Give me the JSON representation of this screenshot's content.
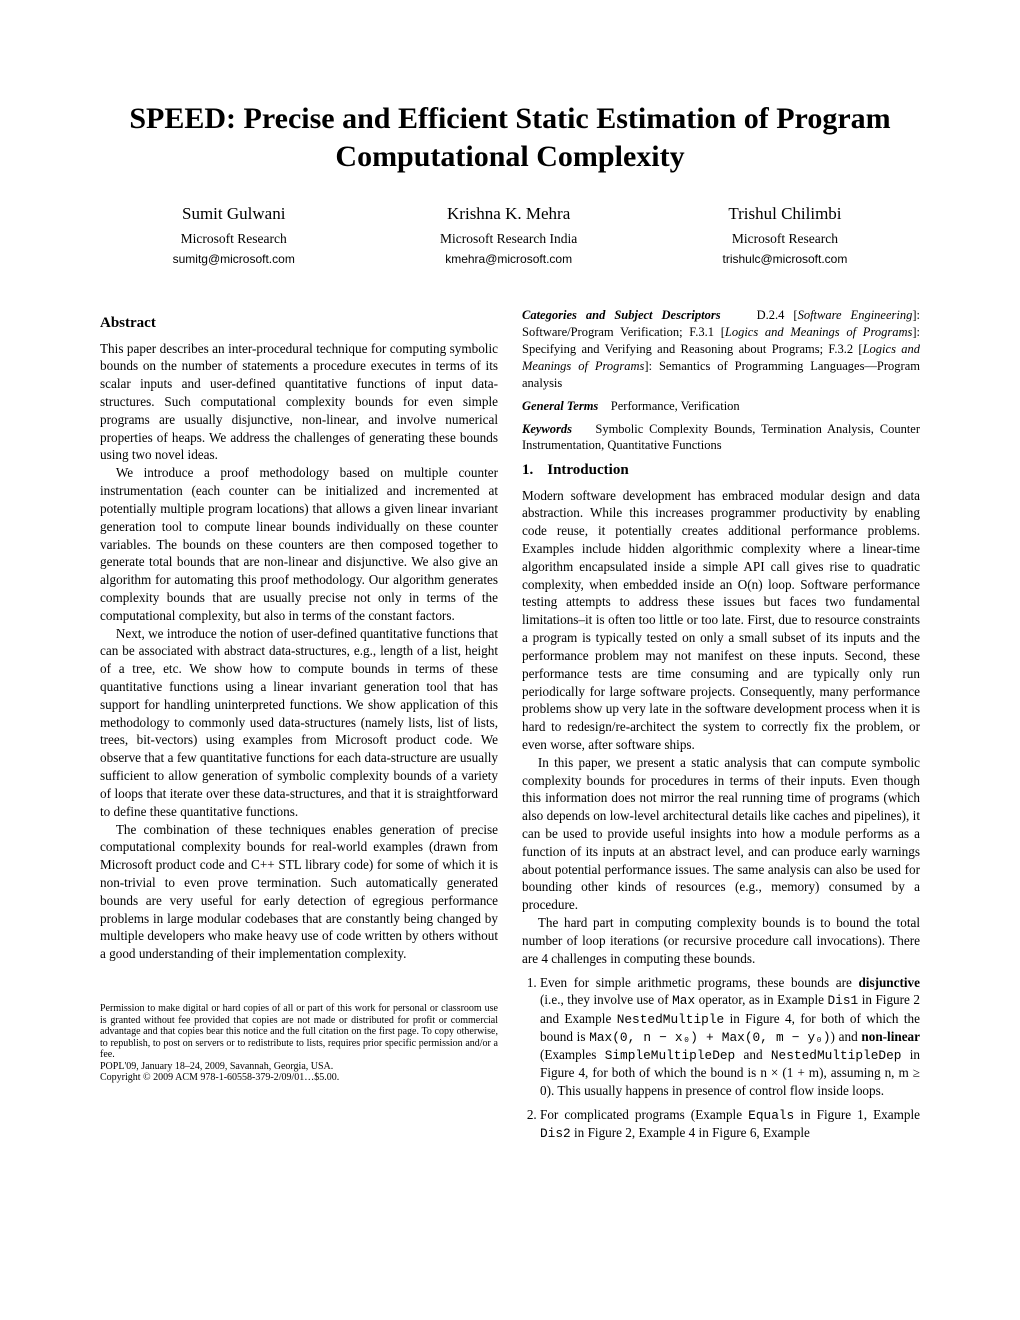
{
  "title": "SPEED: Precise and Efficient Static Estimation of Program Computational Complexity",
  "authors": [
    {
      "name": "Sumit Gulwani",
      "affil": "Microsoft Research",
      "email": "sumitg@microsoft.com"
    },
    {
      "name": "Krishna K. Mehra",
      "affil": "Microsoft Research India",
      "email": "kmehra@microsoft.com"
    },
    {
      "name": "Trishul Chilimbi",
      "affil": "Microsoft Research",
      "email": "trishulc@microsoft.com"
    }
  ],
  "abstract_heading": "Abstract",
  "abstract_p1": "This paper describes an inter-procedural technique for computing symbolic bounds on the number of statements a procedure executes in terms of its scalar inputs and user-defined quantitative functions of input data-structures. Such computational complexity bounds for even simple programs are usually disjunctive, non-linear, and involve numerical properties of heaps. We address the challenges of generating these bounds using two novel ideas.",
  "abstract_p2": "We introduce a proof methodology based on multiple counter instrumentation (each counter can be initialized and incremented at potentially multiple program locations) that allows a given linear invariant generation tool to compute linear bounds individually on these counter variables. The bounds on these counters are then composed together to generate total bounds that are non-linear and disjunctive. We also give an algorithm for automating this proof methodology. Our algorithm generates complexity bounds that are usually precise not only in terms of the computational complexity, but also in terms of the constant factors.",
  "abstract_p3": "Next, we introduce the notion of user-defined quantitative functions that can be associated with abstract data-structures, e.g., length of a list, height of a tree, etc. We show how to compute bounds in terms of these quantitative functions using a linear invariant generation tool that has support for handling uninterpreted functions. We show application of this methodology to commonly used data-structures (namely lists, list of lists, trees, bit-vectors) using examples from Microsoft product code. We observe that a few quantitative functions for each data-structure are usually sufficient to allow generation of symbolic complexity bounds of a variety of loops that iterate over these data-structures, and that it is straightforward to define these quantitative functions.",
  "abstract_p4": "The combination of these techniques enables generation of precise computational complexity bounds for real-world examples (drawn from Microsoft product code and C++ STL library code) for some of which it is non-trivial to even prove termination. Such automatically generated bounds are very useful for early detection of egregious performance problems in large modular codebases that are constantly being changed by multiple developers who make heavy use of code written by others without a good understanding of their implementation complexity.",
  "permission_text": "Permission to make digital or hard copies of all or part of this work for personal or classroom use is granted without fee provided that copies are not made or distributed for profit or commercial advantage and that copies bear this notice and the full citation on the first page. To copy otherwise, to republish, to post on servers or to redistribute to lists, requires prior specific permission and/or a fee.",
  "venue": "POPL'09,   January 18–24, 2009, Savannah, Georgia, USA.",
  "copyright": "Copyright © 2009 ACM 978-1-60558-379-2/09/01…$5.00.",
  "categories_label": "Categories and Subject Descriptors",
  "categories_text_a": "D.2.4 [",
  "categories_text_b": "Software Engineering",
  "categories_text_c": "]: Software/Program Verification;  F.3.1 [",
  "categories_text_d": "Logics and Meanings of Programs",
  "categories_text_e": "]: Specifying and Verifying and Reasoning about Programs;  F.3.2 [",
  "categories_text_f": "Logics and Meanings of Programs",
  "categories_text_g": "]: Semantics of Programming Languages—Program analysis",
  "general_terms_label": "General Terms",
  "general_terms_text": "Performance, Verification",
  "keywords_label": "Keywords",
  "keywords_text": "Symbolic Complexity Bounds, Termination Analysis, Counter Instrumentation, Quantitative Functions",
  "intro_num": "1.",
  "intro_heading": "Introduction",
  "intro_p1": "Modern software development has embraced modular design and data abstraction. While this increases programmer productivity by enabling code reuse, it potentially creates additional performance problems. Examples include hidden algorithmic complexity where a linear-time algorithm encapsulated inside a simple API call gives rise to quadratic complexity, when embedded inside an O(n) loop. Software performance testing attempts to address these issues but faces two fundamental limitations–it is often too little or too late. First, due to resource constraints a program is typically tested on only a small subset of its inputs and the performance problem may not manifest on these inputs. Second, these performance tests are time consuming and are typically only run periodically for large software projects. Consequently, many performance problems show up very late in the software development process when it is hard to redesign/re-architect the system to correctly fix the problem, or even worse, after software ships.",
  "intro_p2": "In this paper, we present a static analysis that can compute symbolic complexity bounds for procedures in terms of their inputs. Even though this information does not mirror the real running time of programs (which also depends on low-level architectural details like caches and pipelines), it can be used to provide useful insights into how a module performs as a function of its inputs at an abstract level, and can produce early warnings about potential performance issues. The same analysis can also be used for bounding other kinds of resources (e.g., memory) consumed by a procedure.",
  "intro_p3": "The hard part in computing complexity bounds is to bound the total number of loop iterations (or recursive procedure call invocations). There are 4 challenges in computing these bounds.",
  "ch1_a": "Even for simple arithmetic programs, these bounds are ",
  "ch1_b": "disjunctive",
  "ch1_c": " (i.e., they involve use of ",
  "ch1_d": "Max",
  "ch1_e": " operator, as in Example ",
  "ch1_f": "Dis1",
  "ch1_g": " in Figure 2 and Example ",
  "ch1_h": "NestedMultiple",
  "ch1_i": " in Figure 4, for both of which the bound is ",
  "ch1_j": "Max(0, n − x₀) + Max(0, m − y₀)",
  "ch1_k": ") and ",
  "ch1_l": "non-linear",
  "ch1_m": " (Examples ",
  "ch1_n": "SimpleMultipleDep",
  "ch1_o": " and ",
  "ch1_p": "NestedMultipleDep",
  "ch1_q": " in Figure 4, for both of which the bound is n × (1 + m), assuming n, m ≥ 0). This usually happens in presence of control flow inside loops.",
  "ch2_a": "For complicated programs (Example ",
  "ch2_b": "Equals",
  "ch2_c": " in Figure 1, Example ",
  "ch2_d": "Dis2",
  "ch2_e": " in Figure 2, Example 4 in Figure 6, Example"
}
